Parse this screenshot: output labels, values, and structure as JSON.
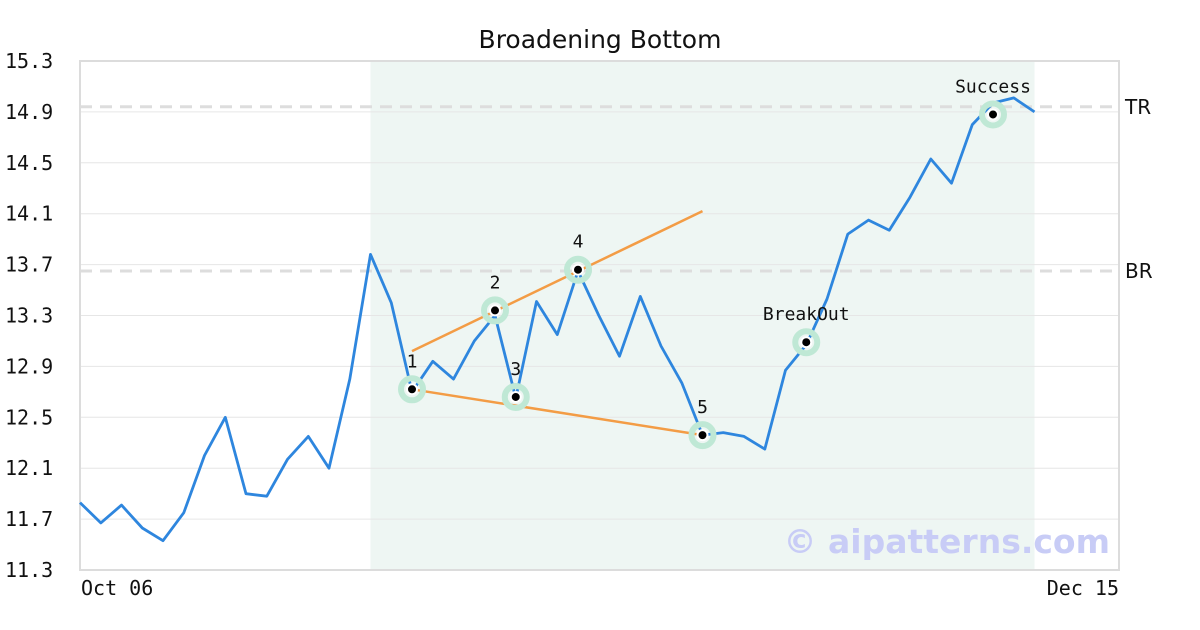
{
  "chart_data": {
    "type": "line",
    "title": "Broadening Bottom",
    "xlabel": "",
    "ylabel": "",
    "ylim": [
      11.3,
      15.3
    ],
    "yticks": [
      "11.3",
      "11.7",
      "12.1",
      "12.5",
      "12.9",
      "13.3",
      "13.7",
      "14.1",
      "14.5",
      "14.9",
      "15.3"
    ],
    "xtick_labels": [
      "Oct 06",
      "Dec 15"
    ],
    "grid": true,
    "series": [
      {
        "color": "#2e86de",
        "values": [
          11.83,
          11.67,
          11.81,
          11.63,
          11.53,
          11.75,
          12.2,
          12.5,
          11.9,
          11.88,
          12.17,
          12.35,
          12.1,
          12.8,
          13.78,
          13.4,
          12.7,
          12.94,
          12.8,
          13.1,
          13.3,
          12.65,
          13.41,
          13.15,
          13.65,
          13.3,
          12.98,
          13.45,
          13.06,
          12.77,
          12.36,
          12.38,
          12.35,
          12.25,
          12.87,
          13.07,
          13.43,
          13.94,
          14.05,
          13.97,
          14.23,
          14.53,
          14.34,
          14.8,
          14.97,
          15.01,
          14.9
        ]
      }
    ],
    "shaded_region": {
      "start_index": 14,
      "end_index": 46,
      "color": "#eef6f3"
    },
    "reference_lines": [
      {
        "label": "TR",
        "y": 14.94
      },
      {
        "label": "BR",
        "y": 13.65
      }
    ],
    "trendlines": [
      {
        "color": "#f39c45",
        "from": {
          "x": 16,
          "y": 13.02
        },
        "to": {
          "x": 30,
          "y": 14.12
        }
      },
      {
        "color": "#f39c45",
        "from": {
          "x": 16,
          "y": 12.72
        },
        "to": {
          "x": 30,
          "y": 12.36
        }
      }
    ],
    "annotations": [
      {
        "label": "1",
        "x": 16,
        "y": 12.72,
        "label_pos": "above"
      },
      {
        "label": "2",
        "x": 20,
        "y": 13.34,
        "label_pos": "above"
      },
      {
        "label": "3",
        "x": 21,
        "y": 12.66,
        "label_pos": "above"
      },
      {
        "label": "4",
        "x": 24,
        "y": 13.66,
        "label_pos": "above"
      },
      {
        "label": "5",
        "x": 30,
        "y": 12.36,
        "label_pos": "above"
      },
      {
        "label": "BreakOut",
        "x": 35,
        "y": 13.09,
        "label_pos": "above"
      },
      {
        "label": "Success",
        "x": 44,
        "y": 14.88,
        "label_pos": "above"
      }
    ],
    "watermark": "© aipatterns.com"
  }
}
